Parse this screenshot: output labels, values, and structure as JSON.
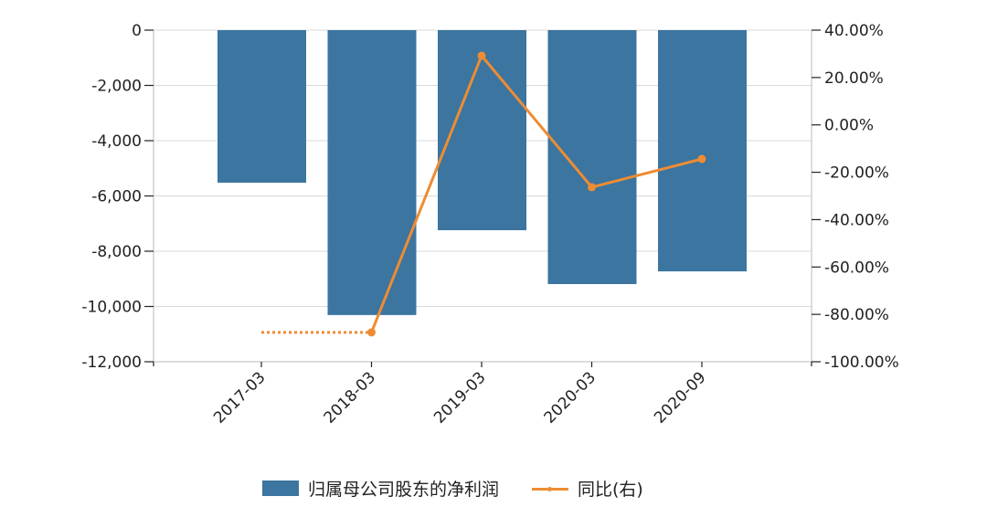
{
  "chart_data": {
    "type": "bar",
    "title": "",
    "xlabel": "",
    "ylabel": "",
    "categories": [
      "2017-03",
      "2018-03",
      "2019-03",
      "2020-03",
      "2020-09"
    ],
    "series": [
      {
        "name": "归属母公司股东的净利润",
        "type": "bar",
        "axis": "left",
        "color": "#3b75a0",
        "values": [
          -5520,
          -10310,
          -7240,
          -9190,
          -8730
        ]
      },
      {
        "name": "同比(右)",
        "type": "line",
        "axis": "right",
        "color": "#ee8c34",
        "values": [
          null,
          -87.6,
          29.2,
          -26.3,
          -14.4
        ],
        "note": "dotted segment from 2017-03 to 2018-03 at -87.6%"
      }
    ],
    "ylim": [
      -12000,
      0
    ],
    "y2lim": [
      -100,
      40
    ],
    "yticks": [
      "0",
      "-2,000",
      "-4,000",
      "-6,000",
      "-8,000",
      "-10,000",
      "-12,000"
    ],
    "y2ticks": [
      "40.00%",
      "20.00%",
      "0.00%",
      "-20.00%",
      "-40.00%",
      "-60.00%",
      "-80.00%",
      "-100.00%"
    ],
    "grid": true,
    "legend_position": "bottom"
  },
  "legend": {
    "bar_label": "归属母公司股东的净利润",
    "line_label": "同比(右)"
  }
}
